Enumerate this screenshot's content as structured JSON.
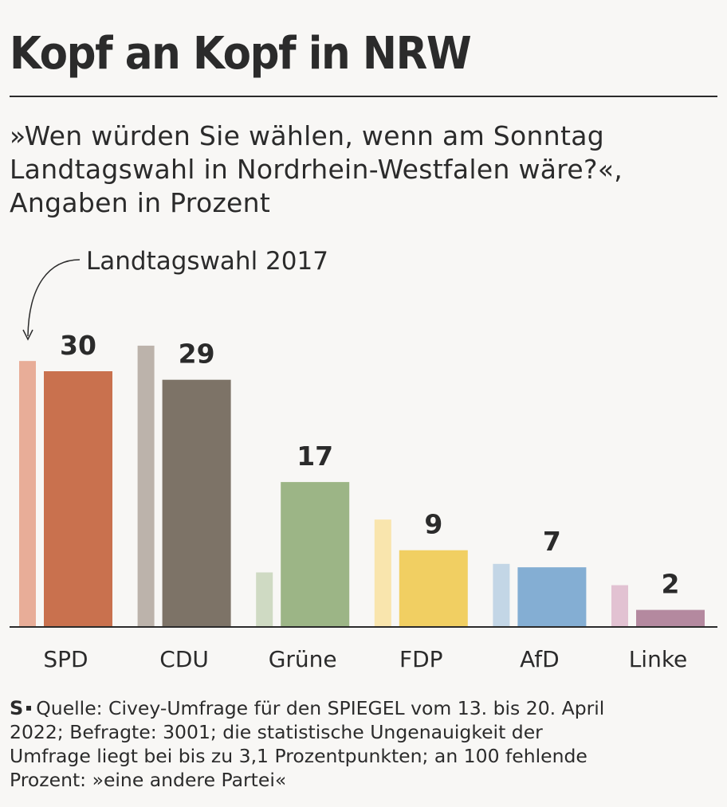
{
  "title": "Kopf an Kopf in NRW",
  "subtitle": [
    "»Wen würden Sie wählen, wenn am Sonntag",
    "Landtagswahl in Nordrhein-Westfalen wäre?«,",
    "Angaben in Prozent"
  ],
  "chart_data": {
    "type": "bar",
    "title": "Kopf an Kopf in NRW",
    "annotation": "Landtagswahl 2017",
    "categories": [
      "SPD",
      "CDU",
      "Grüne",
      "FDP",
      "AfD",
      "Linke"
    ],
    "series": [
      {
        "name": "Landtagswahl 2017",
        "values": [
          31.2,
          33.0,
          6.4,
          12.6,
          7.4,
          4.9
        ],
        "colors": [
          "#e8ad98",
          "#bcb3ab",
          "#cfdac3",
          "#f9e5ad",
          "#c3d6e6",
          "#e2c2d2"
        ]
      },
      {
        "name": "Umfrage",
        "values": [
          30,
          29,
          17,
          9,
          7,
          2
        ],
        "colors": [
          "#c9714e",
          "#7d7367",
          "#9cb586",
          "#f1cf62",
          "#84aed3",
          "#b4899f"
        ]
      }
    ],
    "value_labels": [
      "30",
      "29",
      "17",
      "9",
      "7",
      "2"
    ],
    "ylim": [
      0,
      34
    ],
    "xlabel": "",
    "ylabel": "",
    "grid": false
  },
  "footer": {
    "logo": "S",
    "lines": [
      "Quelle: Civey-Umfrage für den SPIEGEL vom 13. bis 20. April",
      "2022; Befragte: 3001; die statistische Ungenauigkeit der",
      "Umfrage liegt bei bis zu 3,1 Prozentpunkten; an 100 fehlende",
      "Prozent: »eine andere Partei«"
    ]
  }
}
